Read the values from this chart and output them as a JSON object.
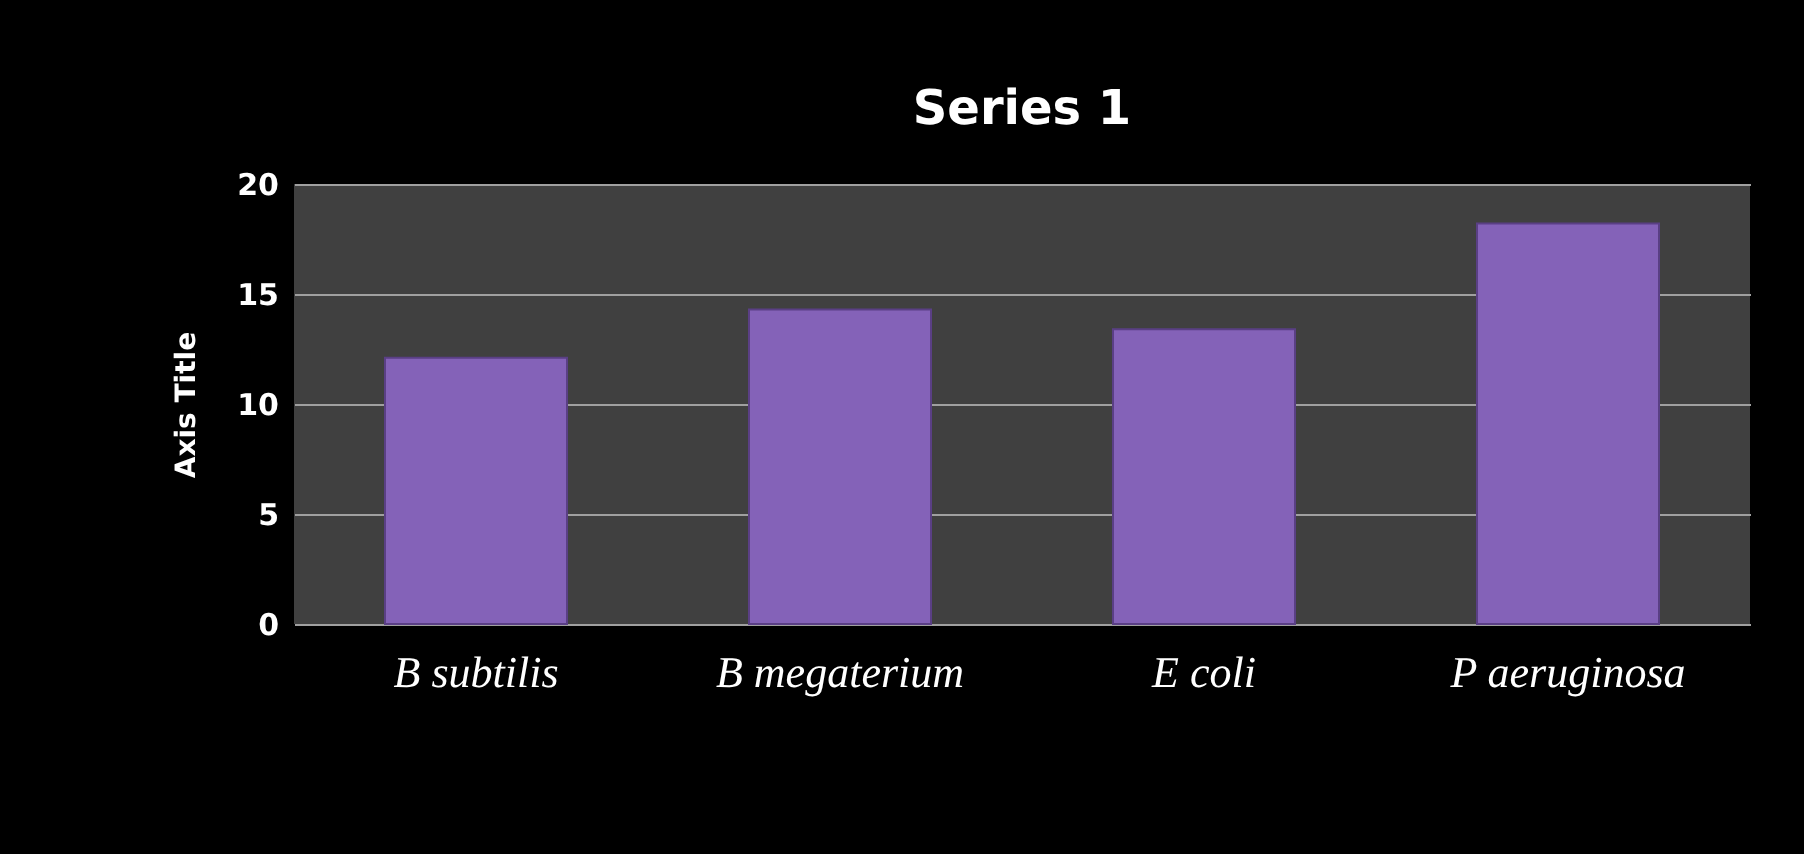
{
  "chart_data": {
    "type": "bar",
    "title": "Series 1",
    "ylabel": "Axis Title",
    "categories": [
      "B subtilis",
      "B megaterium",
      "E coli",
      "P aeruginosa"
    ],
    "values": [
      12.1,
      14.3,
      13.4,
      18.2
    ],
    "color": "#8462b8",
    "ylim": [
      0,
      20
    ],
    "yticks": [
      0,
      5,
      10,
      15,
      20
    ],
    "grid": "y"
  }
}
